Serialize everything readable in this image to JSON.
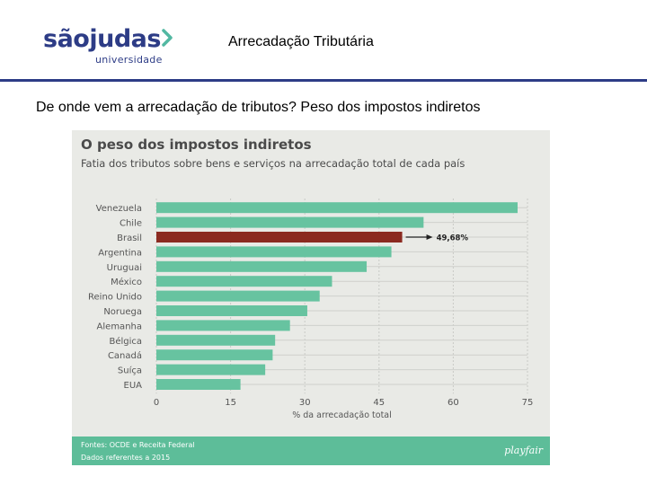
{
  "header": {
    "logo_main": "sãojudas",
    "logo_sub": "universidade",
    "title": "Arrecadação Tributária"
  },
  "slide": {
    "subtitle": "De onde vem a arrecadação de tributos? Peso dos impostos indiretos"
  },
  "figure": {
    "title": "O peso dos impostos indiretos",
    "subtitle": "Fatia dos tributos sobre bens e serviços na arrecadação total de cada país",
    "source_line1": "Fontes: OCDE e Receita Federal",
    "source_line2": "Dados referentes a 2015",
    "brand": "playfair"
  },
  "colors": {
    "bar": "#67c3a0",
    "highlight": "#8b2a20",
    "footer": "#5dbd99",
    "panel": "#e9eae6",
    "brand_blue": "#2d3c86"
  },
  "chart_data": {
    "type": "bar",
    "orientation": "horizontal",
    "title": "O peso dos impostos indiretos",
    "subtitle": "Fatia dos tributos sobre bens e serviços na arrecadação total de cada país",
    "categories": [
      "Venezuela",
      "Chile",
      "Brasil",
      "Argentina",
      "Uruguai",
      "México",
      "Reino Unido",
      "Noruega",
      "Alemanha",
      "Bélgica",
      "Canadá",
      "Suíça",
      "EUA"
    ],
    "values": [
      73,
      54,
      49.68,
      47.5,
      42.5,
      35.5,
      33,
      30.5,
      27,
      24,
      23.5,
      22,
      17
    ],
    "highlight": "Brasil",
    "highlight_label": "49,68%",
    "xlabel": "% da arrecadação total",
    "xticks": [
      0,
      15,
      30,
      45,
      60,
      75
    ],
    "xlim": [
      0,
      75
    ]
  }
}
